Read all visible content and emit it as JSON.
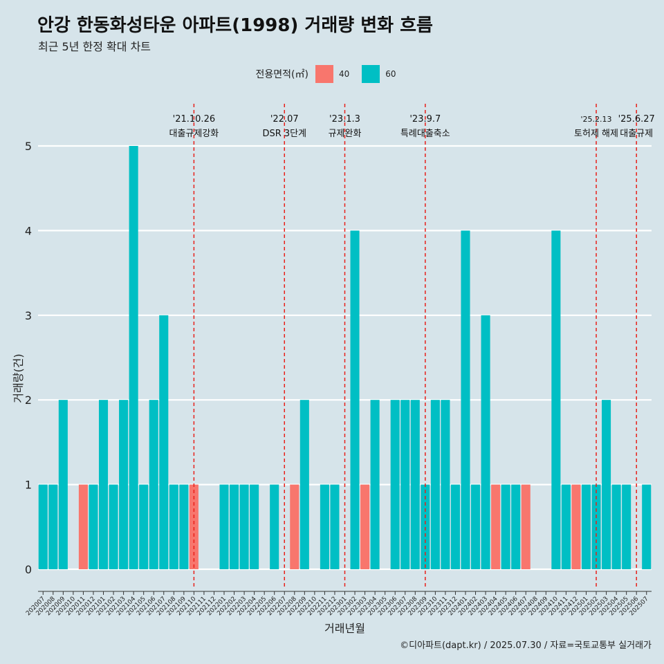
{
  "header": {
    "title": "안강 한동화성타운 아파트(1998) 거래량 변화 흐름",
    "subtitle": "최근 5년 한정 확대 차트"
  },
  "legend": {
    "title": "전용면적(㎡)",
    "items": [
      {
        "label": "40",
        "color": "#f8766d"
      },
      {
        "label": "60",
        "color": "#00bfc4"
      }
    ]
  },
  "caption": "©디아파트(dapt.kr) / 2025.07.30 / 자료=국토교통부 실거래가",
  "chart_data": {
    "type": "bar",
    "stacked": true,
    "title": "안강 한동화성타운 아파트(1998) 거래량 변화 흐름",
    "subtitle": "최근 5년 한정 확대 차트",
    "xlabel": "거래년월",
    "ylabel": "거래량(건)",
    "ylim": [
      0,
      5
    ],
    "yticks": [
      0,
      1,
      2,
      3,
      4,
      5
    ],
    "grid": "horizontal",
    "legend_position": "top",
    "categories": [
      "202007",
      "202008",
      "202009",
      "202010",
      "202011",
      "202012",
      "202101",
      "202102",
      "202103",
      "202104",
      "202105",
      "202106",
      "202107",
      "202108",
      "202109",
      "202110",
      "202111",
      "202112",
      "202201",
      "202202",
      "202203",
      "202204",
      "202205",
      "202206",
      "202207",
      "202208",
      "202209",
      "202210",
      "202211",
      "202212",
      "202301",
      "202302",
      "202303",
      "202304",
      "202305",
      "202306",
      "202307",
      "202308",
      "202309",
      "202310",
      "202311",
      "202312",
      "202401",
      "202402",
      "202403",
      "202404",
      "202405",
      "202406",
      "202407",
      "202408",
      "202409",
      "202410",
      "202411",
      "202412",
      "202501",
      "202502",
      "202503",
      "202504",
      "202505",
      "202506",
      "202507"
    ],
    "series": [
      {
        "name": "40",
        "color": "#f8766d",
        "values": [
          0,
          0,
          0,
          0,
          1,
          0,
          0,
          0,
          0,
          0,
          0,
          0,
          0,
          0,
          0,
          1,
          0,
          0,
          0,
          0,
          0,
          0,
          0,
          0,
          0,
          1,
          0,
          0,
          0,
          0,
          0,
          0,
          1,
          0,
          0,
          0,
          0,
          0,
          0,
          0,
          0,
          0,
          0,
          0,
          0,
          1,
          0,
          0,
          1,
          0,
          0,
          0,
          0,
          1,
          0,
          0,
          0,
          0,
          0,
          0,
          0
        ]
      },
      {
        "name": "60",
        "color": "#00bfc4",
        "values": [
          1,
          1,
          2,
          0,
          0,
          1,
          2,
          1,
          2,
          5,
          1,
          2,
          3,
          1,
          1,
          0,
          0,
          0,
          1,
          1,
          1,
          1,
          0,
          1,
          0,
          0,
          2,
          0,
          1,
          1,
          0,
          4,
          0,
          2,
          0,
          2,
          2,
          2,
          1,
          2,
          2,
          1,
          4,
          1,
          3,
          0,
          1,
          1,
          0,
          0,
          0,
          4,
          1,
          0,
          1,
          1,
          2,
          1,
          1,
          0,
          1
        ]
      }
    ],
    "annotations": [
      {
        "at": "202110",
        "date": "'21.10.26",
        "label": "대출규제강화"
      },
      {
        "at": "202207",
        "date": "'22.07",
        "label": "DSR 3단계"
      },
      {
        "at": "202301",
        "date": "'23.1.3",
        "label": "규제완화"
      },
      {
        "at": "202309",
        "date": "'23.9.7",
        "label": "특례대출축소"
      },
      {
        "at": "202502",
        "date": "'25.2.13",
        "label": "토허제 해제"
      },
      {
        "at": "202506",
        "date": "'25.6.27",
        "label": "대출규제"
      }
    ]
  }
}
